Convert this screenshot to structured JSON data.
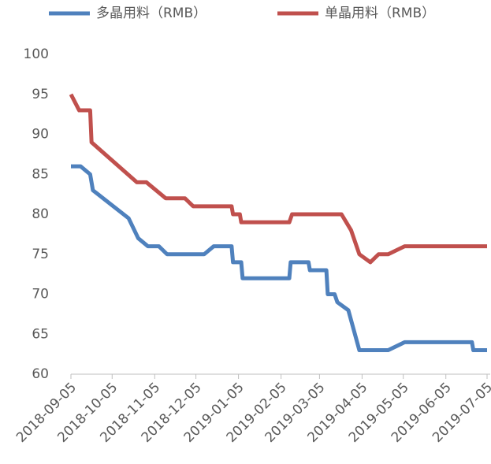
{
  "chart_data": {
    "type": "line",
    "legend": "top",
    "xlim": [
      "2018-09-05",
      "2019-07-05"
    ],
    "xticks": [
      "2018-09-05",
      "2018-10-05",
      "2018-11-05",
      "2018-12-05",
      "2019-01-05",
      "2019-02-05",
      "2019-03-05",
      "2019-04-05",
      "2019-05-05",
      "2019-06-05",
      "2019-07-05"
    ],
    "ylim": [
      60,
      100
    ],
    "yticks": [
      60,
      65,
      70,
      75,
      80,
      85,
      90,
      95,
      100
    ],
    "series": [
      {
        "name": "多晶用料（RMB）",
        "color": "#4f81bd",
        "x": [
          "2018-09-05",
          "2018-09-12",
          "2018-09-19",
          "2018-09-21",
          "2018-10-17",
          "2018-10-24",
          "2018-10-31",
          "2018-11-08",
          "2018-11-14",
          "2018-12-11",
          "2018-12-18",
          "2018-12-31",
          "2019-01-01",
          "2019-01-07",
          "2019-01-08",
          "2019-02-11",
          "2019-02-12",
          "2019-02-25",
          "2019-02-26",
          "2019-03-10",
          "2019-03-11",
          "2019-03-16",
          "2019-03-18",
          "2019-03-26",
          "2019-04-03",
          "2019-04-24",
          "2019-05-06",
          "2019-06-24",
          "2019-06-25",
          "2019-07-05"
        ],
        "values": [
          86,
          86,
          85,
          83,
          79.5,
          77,
          76,
          76,
          75,
          75,
          76,
          76,
          74,
          74,
          72,
          72,
          74,
          74,
          73,
          73,
          70,
          70,
          69,
          68,
          63,
          63,
          64,
          64,
          63,
          63
        ]
      },
      {
        "name": "单晶用料（RMB）",
        "color": "#c0504d",
        "x": [
          "2018-09-05",
          "2018-09-11",
          "2018-09-19",
          "2018-09-20",
          "2018-10-23",
          "2018-10-30",
          "2018-11-13",
          "2018-11-27",
          "2018-12-03",
          "2018-12-31",
          "2019-01-01",
          "2019-01-06",
          "2019-01-07",
          "2019-02-11",
          "2019-02-13",
          "2019-03-21",
          "2019-03-28",
          "2019-04-03",
          "2019-04-11",
          "2019-04-17",
          "2019-04-24",
          "2019-05-06",
          "2019-07-05"
        ],
        "values": [
          95,
          93,
          93,
          89,
          84,
          84,
          82,
          82,
          81,
          81,
          80,
          80,
          79,
          79,
          80,
          80,
          78,
          75,
          74,
          75,
          75,
          76,
          76
        ]
      }
    ]
  }
}
